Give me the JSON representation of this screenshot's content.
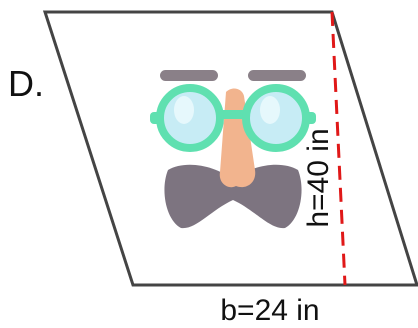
{
  "label": "D.",
  "height_label": "h=40 in",
  "base_label": "b=24 in"
}
